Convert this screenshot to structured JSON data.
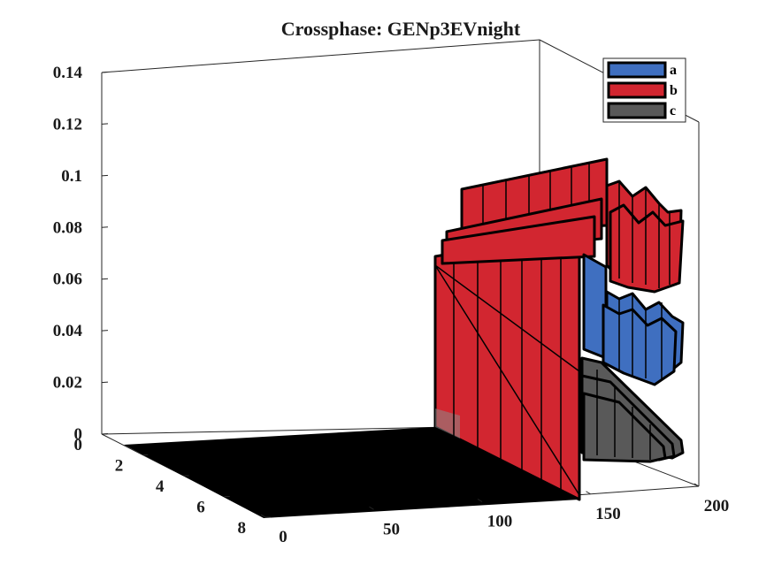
{
  "chart_data": {
    "type": "3d-waterfall",
    "title": "Crossphase: GENp3EVnight",
    "z_ticks": [
      "0",
      "0.02",
      "0.04",
      "0.06",
      "0.08",
      "0.1",
      "0.12",
      "0.14"
    ],
    "x_ticks": [
      "0",
      "50",
      "100",
      "150",
      "200"
    ],
    "y_ticks": [
      "0",
      "2",
      "4",
      "6",
      "8"
    ],
    "zlim": [
      0,
      0.14
    ],
    "xlim": [
      0,
      200
    ],
    "ylim": [
      0,
      8
    ],
    "grid": false,
    "legend_position": "top-right",
    "series": [
      {
        "name": "a",
        "color": "#3f6fc0",
        "approx_level": 0.045
      },
      {
        "name": "b",
        "color": "#d22630",
        "approx_level": 0.08
      },
      {
        "name": "c",
        "color": "#595959",
        "approx_level": 0.02
      }
    ]
  }
}
